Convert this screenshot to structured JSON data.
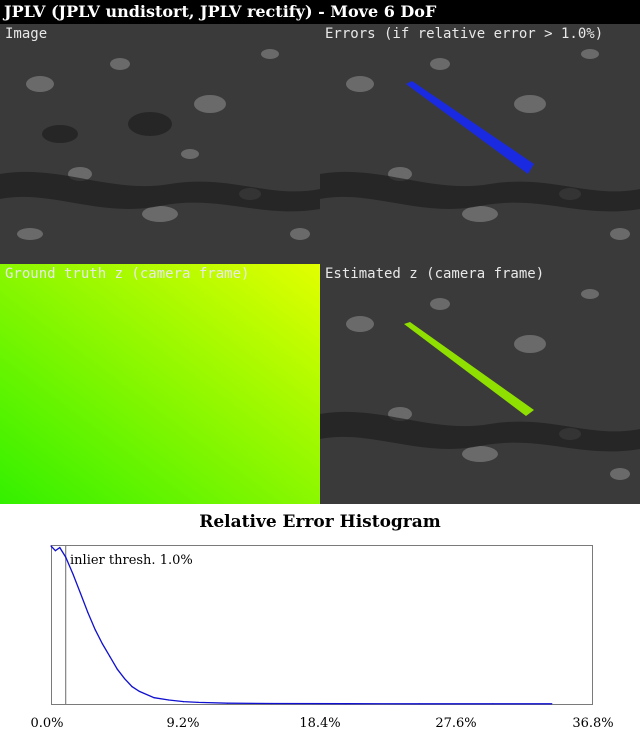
{
  "title": "JPLV (JPLV undistort, JPLV rectify) - Move 6 DoF",
  "panels": {
    "image": "Image",
    "errors": "Errors (if relative error > 1.0%)",
    "ground_truth": "Ground truth z (camera frame)",
    "estimated": "Estimated z (camera frame)"
  },
  "histogram": {
    "title": "Relative Error Histogram",
    "threshold_label": "inlier thresh. 1.0%",
    "x_ticks": [
      "0.0%",
      "9.2%",
      "18.4%",
      "27.6%",
      "36.8%"
    ]
  },
  "chart_data": {
    "type": "line",
    "title": "Relative Error Histogram",
    "xlabel": "",
    "ylabel": "",
    "xlim": [
      0,
      36.8
    ],
    "x_ticks": [
      0,
      9.2,
      18.4,
      27.6,
      36.8
    ],
    "threshold": 1.0,
    "series": [
      {
        "x": [
          0.0,
          0.3,
          0.6,
          1.0,
          1.5,
          2.0,
          2.5,
          3.0,
          3.5,
          4.0,
          4.5,
          5.0,
          5.5,
          6.0,
          7.0,
          8.0,
          9.0,
          10.0,
          12.0,
          15.0,
          20.0,
          25.0,
          30.0,
          34.0
        ],
        "y": [
          1.0,
          0.97,
          0.99,
          0.93,
          0.82,
          0.7,
          0.58,
          0.47,
          0.38,
          0.3,
          0.22,
          0.16,
          0.11,
          0.08,
          0.04,
          0.025,
          0.015,
          0.01,
          0.005,
          0.003,
          0.002,
          0.001,
          0.001,
          0.001
        ]
      }
    ]
  }
}
